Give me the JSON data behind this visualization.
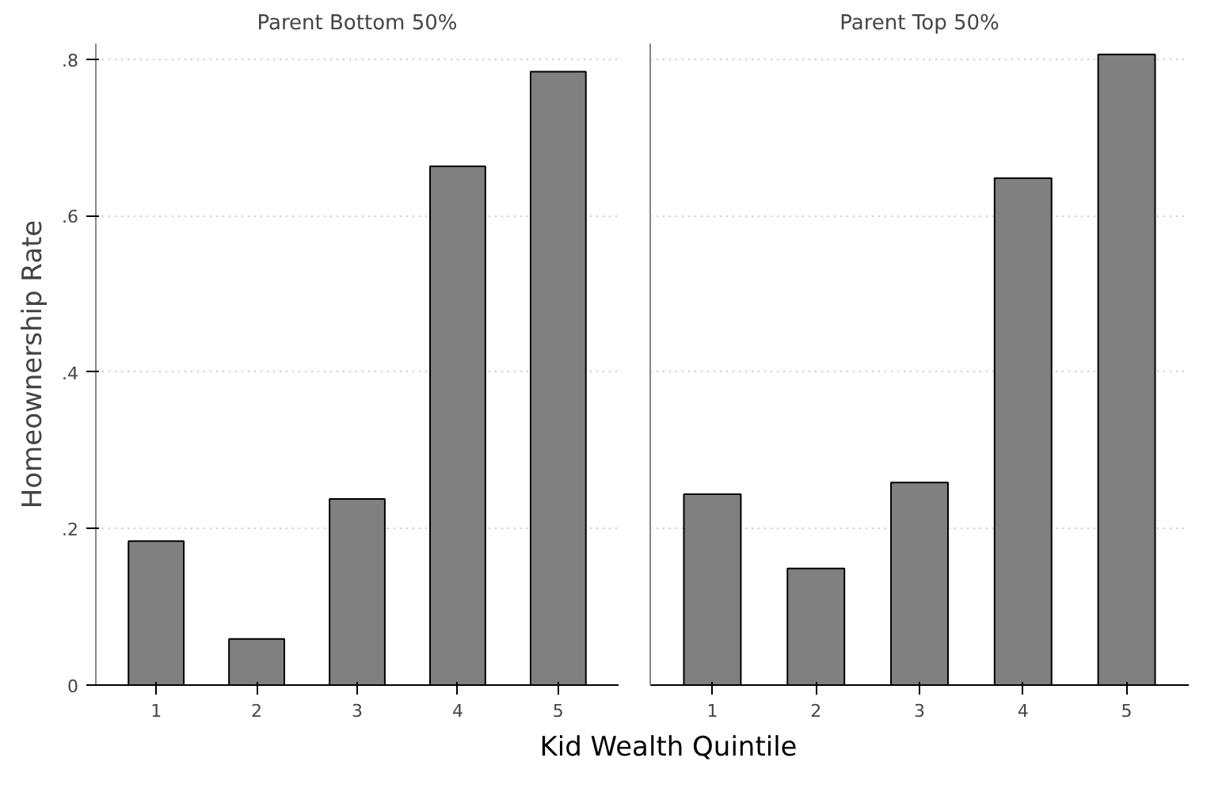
{
  "chart_data": [
    {
      "type": "bar",
      "title": "Parent Bottom 50%",
      "ylabel": "Homeownership Rate",
      "xlabel": "Kid Wealth Quintile",
      "categories": [
        "1",
        "2",
        "3",
        "4",
        "5"
      ],
      "values": [
        0.184,
        0.059,
        0.238,
        0.663,
        0.784
      ],
      "color": "#808080",
      "ylim": [
        0,
        0.82
      ],
      "yticks": [
        {
          "value": 0,
          "label": "0"
        },
        {
          "value": 0.2,
          "label": ".2"
        },
        {
          "value": 0.4,
          "label": ".4"
        },
        {
          "value": 0.6,
          "label": ".6"
        },
        {
          "value": 0.8,
          "label": ".8"
        }
      ],
      "grid": "y"
    },
    {
      "type": "bar",
      "title": "Parent Top 50%",
      "categories": [
        "1",
        "2",
        "3",
        "4",
        "5"
      ],
      "values": [
        0.244,
        0.149,
        0.259,
        0.648,
        0.806
      ],
      "color": "#808080",
      "ylim": [
        0,
        0.82
      ],
      "yticks": [
        {
          "value": 0,
          "label": null
        },
        {
          "value": 0.2,
          "label": null
        },
        {
          "value": 0.4,
          "label": null
        },
        {
          "value": 0.6,
          "label": null
        },
        {
          "value": 0.8,
          "label": null
        }
      ],
      "grid": "y",
      "tick_labels": "x"
    }
  ]
}
